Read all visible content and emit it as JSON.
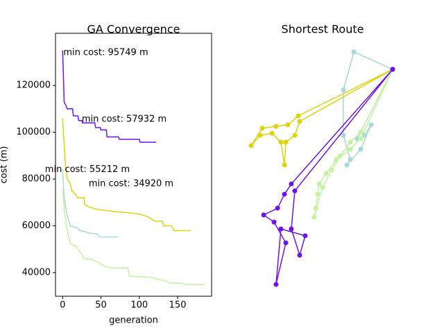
{
  "chart_data": [
    {
      "type": "line",
      "title": "GA Convergence",
      "xlabel": "generation",
      "ylabel": "cost (m)",
      "xlim": [
        -9.25,
        194.25
      ],
      "ylim": [
        29900,
        142300
      ],
      "xticks": [
        0,
        50,
        100,
        150
      ],
      "yticks": [
        40000,
        60000,
        80000,
        100000,
        120000
      ],
      "series": [
        {
          "color": "#6e13e8",
          "x": [
            0,
            1,
            2,
            5,
            6,
            13,
            14,
            20,
            21,
            25,
            26,
            42,
            43,
            49,
            50,
            57,
            58,
            73,
            74,
            100,
            101,
            122
          ],
          "values": [
            135000,
            125000,
            113000,
            111000,
            110000,
            110000,
            107000,
            107000,
            105000,
            105000,
            104000,
            104000,
            102000,
            102000,
            101000,
            101000,
            98000,
            98000,
            97000,
            97000,
            95749,
            95749
          ]
        },
        {
          "color": "#dcd408",
          "x": [
            0,
            2,
            4,
            6,
            10,
            12,
            18,
            20,
            28,
            29,
            35,
            45,
            70,
            90,
            100,
            110,
            113,
            120,
            130,
            132,
            142,
            145,
            167
          ],
          "values": [
            106000,
            95000,
            85000,
            80000,
            78000,
            75000,
            73000,
            72000,
            72000,
            69000,
            68000,
            67000,
            66000,
            65500,
            65000,
            64000,
            63500,
            62000,
            62000,
            60000,
            60000,
            57932,
            57932
          ]
        },
        {
          "color": "#a6d9d9",
          "x": [
            0,
            2,
            5,
            8,
            10,
            20,
            22,
            30,
            32,
            45,
            48,
            72
          ],
          "values": [
            84000,
            72000,
            66000,
            62000,
            60000,
            59000,
            58000,
            57500,
            57000,
            56500,
            55212,
            55212
          ]
        },
        {
          "color": "#c4f3a0",
          "x": [
            0,
            3,
            5,
            8,
            10,
            18,
            25,
            28,
            40,
            50,
            57,
            65,
            85,
            87,
            115,
            125,
            135,
            140,
            155,
            160,
            185
          ],
          "values": [
            75000,
            65000,
            60000,
            55000,
            52500,
            51000,
            48000,
            46000,
            45500,
            43500,
            42500,
            42000,
            42000,
            38500,
            38000,
            37000,
            36500,
            35500,
            35500,
            34920,
            34920
          ]
        }
      ],
      "annotations": [
        {
          "text": "min cost: 95749 m",
          "x": 1,
          "y": 134000
        },
        {
          "text": "min cost: 57932 m",
          "x": 25,
          "y": 105500
        },
        {
          "text": "min cost: 55212 m",
          "x": -23,
          "y": 84000
        },
        {
          "text": "min cost: 34920 m",
          "x": 34,
          "y": 78000
        }
      ]
    },
    {
      "type": "route",
      "title": "Shortest Route",
      "axis_visible": false,
      "xlim": [
        0,
        100
      ],
      "ylim": [
        0,
        100
      ],
      "series": [
        {
          "color": "#dcd408",
          "x": [
            95.9,
            34.1,
            27.3,
            19.5,
            10.5,
            3.2,
            9.1,
            16.8,
            22.7,
            25.0,
            25.9,
            31.8,
            35.0,
            95.9
          ],
          "values": [
            86.3,
            68.6,
            65.2,
            64.6,
            63.9,
            57.3,
            61.2,
            62.0,
            58.6,
            49.9,
            58.6,
            61.2,
            66.5,
            86.3
          ]
        },
        {
          "color": "#a6d9d9",
          "x": [
            95.9,
            70.5,
            63.6,
            63.6,
            68.2,
            65.9,
            75.0,
            81.8,
            77.3,
            72.7,
            95.9
          ],
          "values": [
            86.3,
            92.9,
            78.4,
            61.2,
            52.0,
            49.9,
            55.9,
            65.2,
            61.2,
            59.9,
            86.3
          ]
        },
        {
          "color": "#c4f3a0",
          "x": [
            95.9,
            75.0,
            68.2,
            59.1,
            52.3,
            47.7,
            46.8,
            45.5,
            44.5,
            50.0,
            55.9,
            61.4,
            68.2,
            75.0,
            95.9
          ],
          "values": [
            86.3,
            59.9,
            55.9,
            52.0,
            46.7,
            42.7,
            38.8,
            33.5,
            30.1,
            41.4,
            48.0,
            53.3,
            58.6,
            62.5,
            86.3
          ]
        },
        {
          "color": "#6e13e8",
          "x": [
            95.9,
            29.5,
            25.0,
            20.5,
            11.4,
            18.2,
            25.9,
            19.5,
            22.7,
            38.6,
            35.0,
            29.5,
            31.8,
            95.9
          ],
          "values": [
            86.3,
            42.7,
            38.8,
            33.5,
            30.9,
            28.2,
            20.3,
            4.5,
            25.6,
            23.0,
            15.6,
            25.6,
            40.1,
            86.3
          ]
        }
      ]
    }
  ]
}
